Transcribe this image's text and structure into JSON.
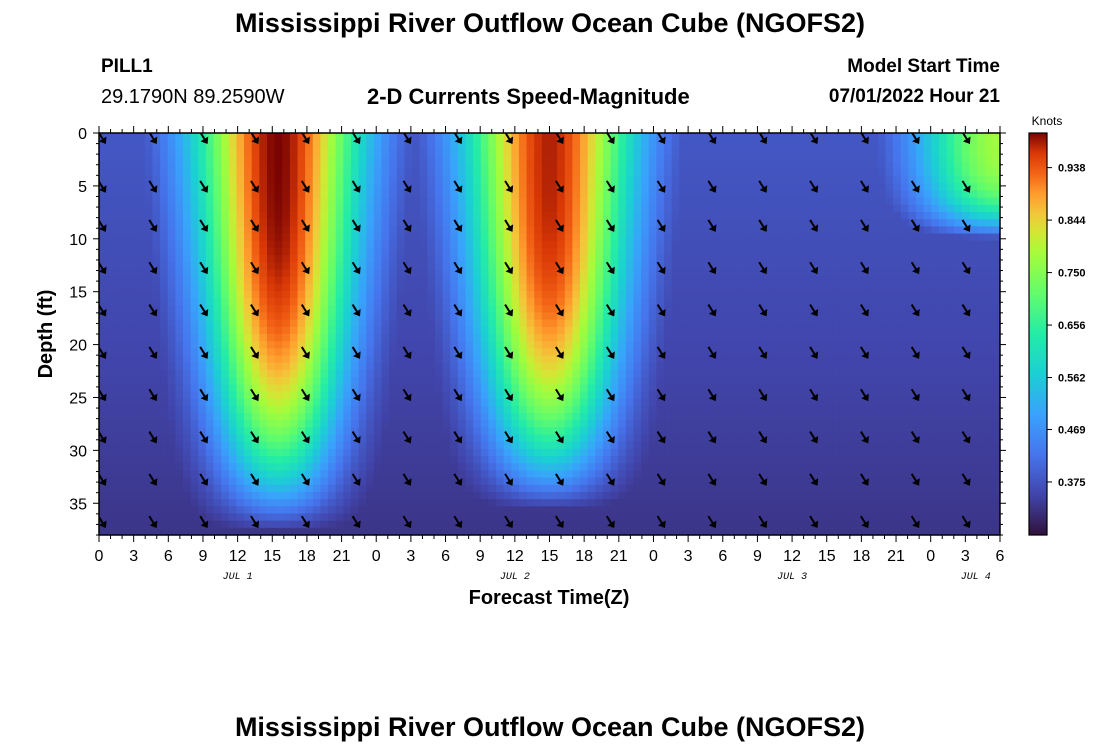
{
  "header": {
    "title": "Mississippi River Outflow Ocean Cube (NGOFS2)",
    "station": "PILL1",
    "coordinates": "29.1790N  89.2590W",
    "plot_title": "2-D Currents Speed-Magnitude",
    "model_start_label": "Model Start Time",
    "model_start_value": "07/01/2022 Hour 21"
  },
  "footer": {
    "title": "Mississippi River Outflow Ocean Cube (NGOFS2)"
  },
  "chart_data": {
    "type": "heatmap",
    "xlabel": "Forecast Time(Z)",
    "ylabel": "Depth (ft)",
    "x_ticks": [
      "0",
      "3",
      "6",
      "9",
      "12",
      "15",
      "18",
      "21",
      "0",
      "3",
      "6",
      "9",
      "12",
      "15",
      "18",
      "21",
      "0",
      "3",
      "6",
      "9",
      "12",
      "15",
      "18",
      "21",
      "0",
      "3",
      "6"
    ],
    "day_labels": [
      {
        "label": "JUL 1",
        "tick_index": 4
      },
      {
        "label": "JUL 2",
        "tick_index": 12
      },
      {
        "label": "JUL 3",
        "tick_index": 20
      },
      {
        "label": "JUL 4",
        "tick_index": 25.3
      }
    ],
    "x_range_hours": [
      0,
      78
    ],
    "y_ticks": [
      0,
      5,
      10,
      15,
      20,
      25,
      30,
      35
    ],
    "y_range_ft": [
      0,
      38
    ],
    "colorbar": {
      "unit": "Knots",
      "ticks": [
        "0.938",
        "0.844",
        "0.750",
        "0.656",
        "0.562",
        "0.469",
        "0.375"
      ],
      "range": [
        0.28,
        1.0
      ]
    },
    "speed_peaks": [
      {
        "center_hours": 15.5,
        "surface_speed": 1.0,
        "depth_reach_ft": 35.5
      },
      {
        "center_hours": 39.0,
        "surface_speed": 0.98,
        "depth_reach_ft": 33.5
      },
      {
        "center_hours": 78.0,
        "surface_speed": 0.78,
        "depth_reach_ft": 8.0
      }
    ],
    "arrow_columns_hours": [
      0,
      4.4,
      8.8,
      13.2,
      17.6,
      22.0,
      26.4,
      30.8,
      35.2,
      39.6,
      44.0,
      48.4,
      52.8,
      57.2,
      61.6,
      66.0,
      70.4,
      74.8
    ],
    "arrow_rows_ft": [
      0,
      4.6,
      8.3,
      12.3,
      16.3,
      20.3,
      24.3,
      28.3,
      32.3,
      36.3
    ]
  }
}
